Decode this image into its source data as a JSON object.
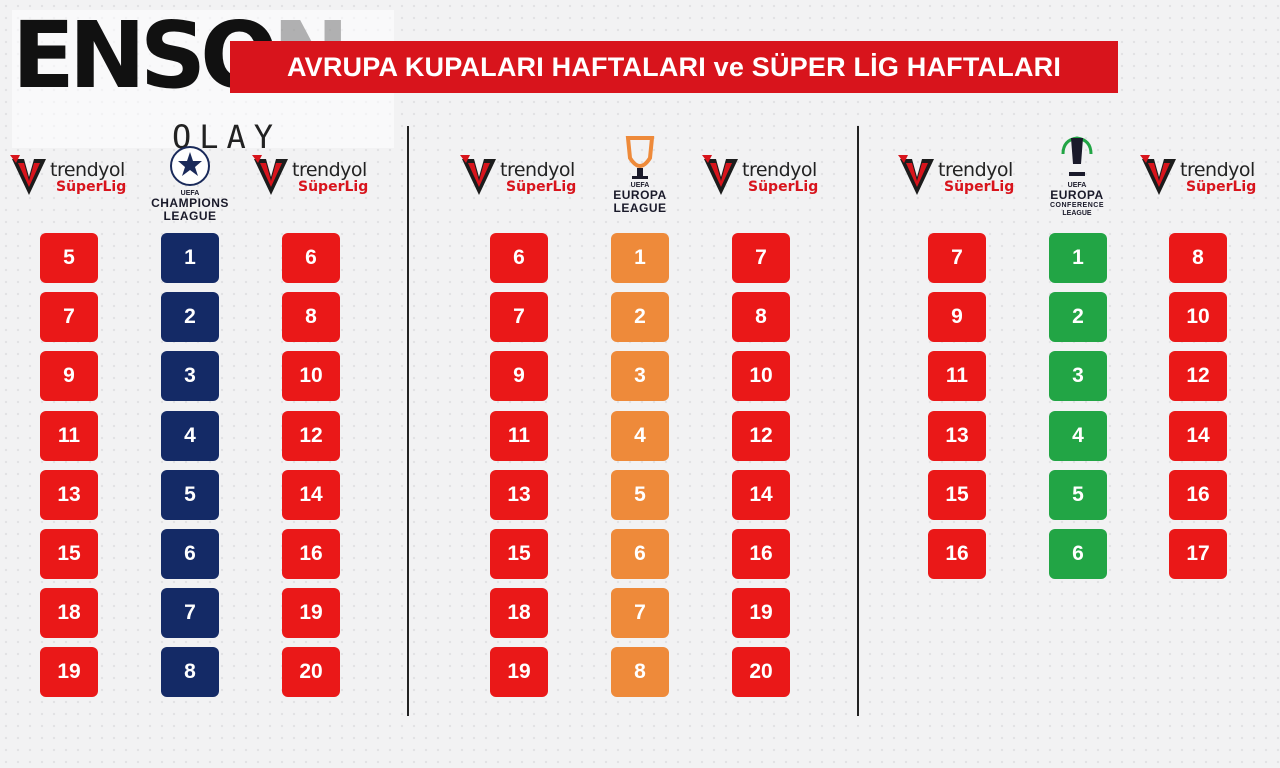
{
  "title": "AVRUPA KUPALARI HAFTALARI ve SÜPER LİG HAFTALARI",
  "brand": {
    "word_main": "ENSO",
    "word_ghost": "N",
    "sub": "OLAY"
  },
  "superlig_logo": {
    "line1": "trendyol",
    "line2": "SüperLig"
  },
  "colors": {
    "red": "#ea1818",
    "navy": "#142a66",
    "orange": "#ee8a3a",
    "green": "#22a545",
    "banner": "#d8141c"
  },
  "sections": [
    {
      "cup": {
        "uefa": "UEFA",
        "line1": "CHAMPIONS",
        "line2": "LEAGUE",
        "icon": "starball-icon"
      },
      "left_weeks": [
        "5",
        "7",
        "9",
        "11",
        "13",
        "15",
        "18",
        "19"
      ],
      "cup_weeks": [
        "1",
        "2",
        "3",
        "4",
        "5",
        "6",
        "7",
        "8"
      ],
      "right_weeks": [
        "6",
        "8",
        "10",
        "12",
        "14",
        "16",
        "19",
        "20"
      ]
    },
    {
      "cup": {
        "uefa": "UEFA",
        "line1": "EUROPA",
        "line2": "LEAGUE",
        "icon": "europa-trophy-icon"
      },
      "left_weeks": [
        "6",
        "7",
        "9",
        "11",
        "13",
        "15",
        "18",
        "19"
      ],
      "cup_weeks": [
        "1",
        "2",
        "3",
        "4",
        "5",
        "6",
        "7",
        "8"
      ],
      "right_weeks": [
        "7",
        "8",
        "10",
        "12",
        "14",
        "16",
        "19",
        "20"
      ]
    },
    {
      "cup": {
        "uefa": "UEFA",
        "line1": "EUROPA",
        "line2": "CONFERENCE",
        "line3": "LEAGUE",
        "icon": "conference-trophy-icon"
      },
      "left_weeks": [
        "7",
        "9",
        "11",
        "13",
        "15",
        "16"
      ],
      "cup_weeks": [
        "1",
        "2",
        "3",
        "4",
        "5",
        "6"
      ],
      "right_weeks": [
        "8",
        "10",
        "12",
        "14",
        "16",
        "17"
      ]
    }
  ]
}
